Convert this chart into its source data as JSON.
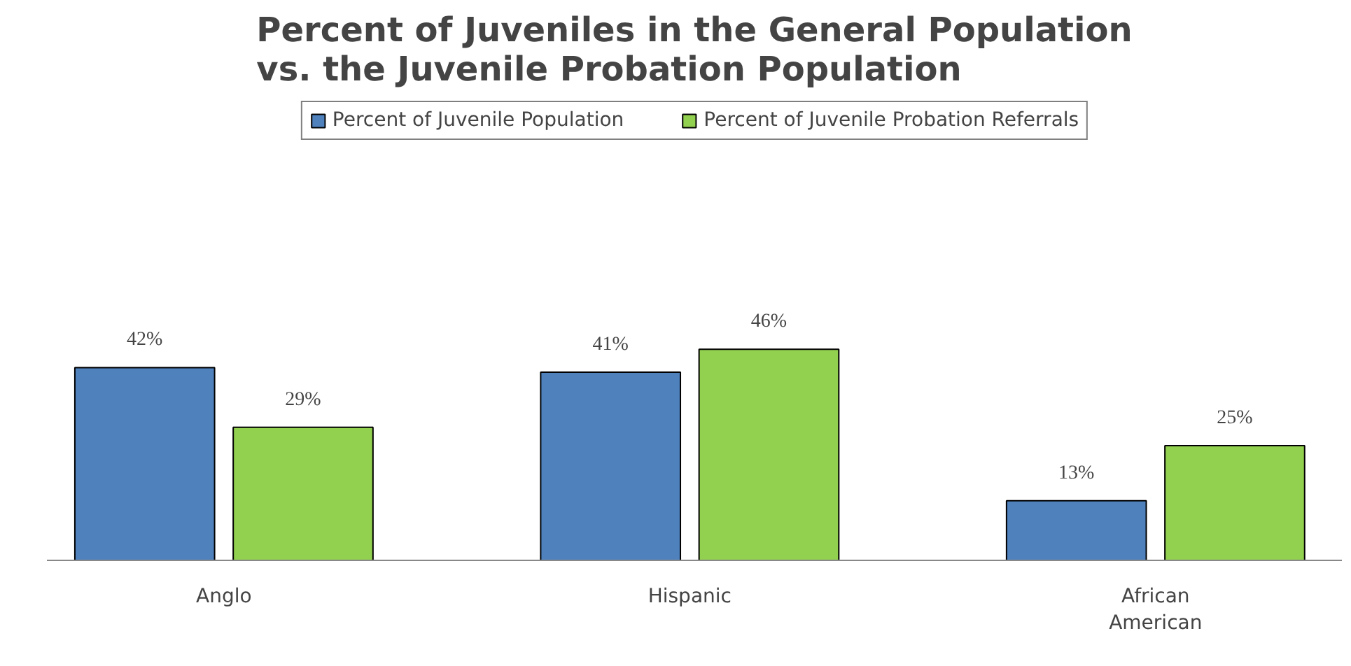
{
  "chart_data": {
    "type": "bar",
    "title": "Percent of Juveniles in the General Population\nvs. the Juvenile Probation Population",
    "categories": [
      "Anglo",
      "Hispanic",
      "African\nAmerican"
    ],
    "series": [
      {
        "name": "Percent of Juvenile Population",
        "color": "#4f81bd",
        "values": [
          42,
          41,
          13
        ],
        "value_labels": [
          "42%",
          "41%",
          "13%"
        ]
      },
      {
        "name": "Percent of Juvenile Probation Referrals",
        "color": "#92d050",
        "values": [
          29,
          46,
          25
        ],
        "value_labels": [
          "29%",
          "46%",
          "25%"
        ]
      }
    ],
    "legend": "top"
  }
}
